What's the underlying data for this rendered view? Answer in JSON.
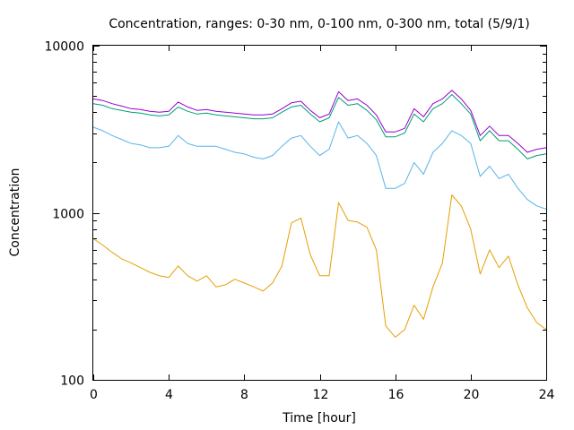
{
  "chart_data": {
    "type": "line",
    "title": "Concentration, ranges: 0-30 nm, 0-100 nm, 0-300 nm, total (5/9/1)",
    "xlabel": "Time [hour]",
    "ylabel": "Concentration",
    "xlim": [
      0,
      24
    ],
    "ylim": [
      100,
      10000
    ],
    "yscale": "log",
    "grid": false,
    "legend": "none",
    "x_ticks": [
      0,
      4,
      8,
      12,
      16,
      20,
      24
    ],
    "x_tick_labels": [
      "0",
      "4",
      "8",
      "12",
      "16",
      "20",
      "24"
    ],
    "y_ticks": [
      100,
      1000,
      10000
    ],
    "y_tick_labels": [
      "100",
      "1000",
      "10000"
    ],
    "x": [
      0,
      0.5,
      1,
      1.5,
      2,
      2.5,
      3,
      3.5,
      4,
      4.5,
      5,
      5.5,
      6,
      6.5,
      7,
      7.5,
      8,
      8.5,
      9,
      9.5,
      10,
      10.5,
      11,
      11.5,
      12,
      12.5,
      13,
      13.5,
      14,
      14.5,
      15,
      15.5,
      16,
      16.5,
      17,
      17.5,
      18,
      18.5,
      19,
      19.5,
      20,
      20.5,
      21,
      21.5,
      22,
      22.5,
      23,
      23.5,
      24
    ],
    "series": [
      {
        "color": "#e69f00",
        "values": [
          700,
          640,
          580,
          530,
          500,
          470,
          440,
          420,
          410,
          480,
          420,
          390,
          420,
          360,
          370,
          400,
          380,
          360,
          340,
          380,
          480,
          870,
          930,
          560,
          420,
          420,
          1150,
          900,
          880,
          820,
          600,
          210,
          180,
          200,
          280,
          230,
          360,
          500,
          1280,
          1100,
          800,
          430,
          600,
          470,
          550,
          370,
          270,
          220,
          200
        ]
      },
      {
        "color": "#56b4e9",
        "values": [
          3250,
          3100,
          2900,
          2750,
          2600,
          2550,
          2450,
          2450,
          2500,
          2900,
          2600,
          2500,
          2500,
          2500,
          2400,
          2300,
          2250,
          2150,
          2100,
          2200,
          2500,
          2800,
          2900,
          2500,
          2200,
          2400,
          3500,
          2800,
          2900,
          2600,
          2200,
          1400,
          1400,
          1500,
          2000,
          1700,
          2300,
          2600,
          3100,
          2900,
          2600,
          1650,
          1900,
          1600,
          1700,
          1400,
          1200,
          1100,
          1050
        ]
      },
      {
        "color": "#009e73",
        "values": [
          4500,
          4400,
          4200,
          4100,
          4000,
          3950,
          3850,
          3800,
          3850,
          4300,
          4050,
          3900,
          3950,
          3850,
          3800,
          3750,
          3700,
          3650,
          3650,
          3700,
          4000,
          4300,
          4400,
          3900,
          3500,
          3700,
          4900,
          4400,
          4500,
          4100,
          3600,
          2850,
          2850,
          3000,
          3900,
          3500,
          4200,
          4500,
          5100,
          4500,
          3900,
          2700,
          3100,
          2700,
          2700,
          2400,
          2100,
          2200,
          2250
        ]
      },
      {
        "color": "#9400d3",
        "values": [
          4800,
          4700,
          4500,
          4350,
          4200,
          4150,
          4050,
          4000,
          4050,
          4600,
          4300,
          4100,
          4150,
          4050,
          4000,
          3950,
          3900,
          3850,
          3850,
          3900,
          4200,
          4550,
          4650,
          4100,
          3700,
          3900,
          5300,
          4700,
          4800,
          4400,
          3850,
          3050,
          3050,
          3200,
          4200,
          3750,
          4500,
          4800,
          5400,
          4800,
          4100,
          2900,
          3300,
          2900,
          2900,
          2600,
          2300,
          2400,
          2450
        ]
      }
    ]
  }
}
